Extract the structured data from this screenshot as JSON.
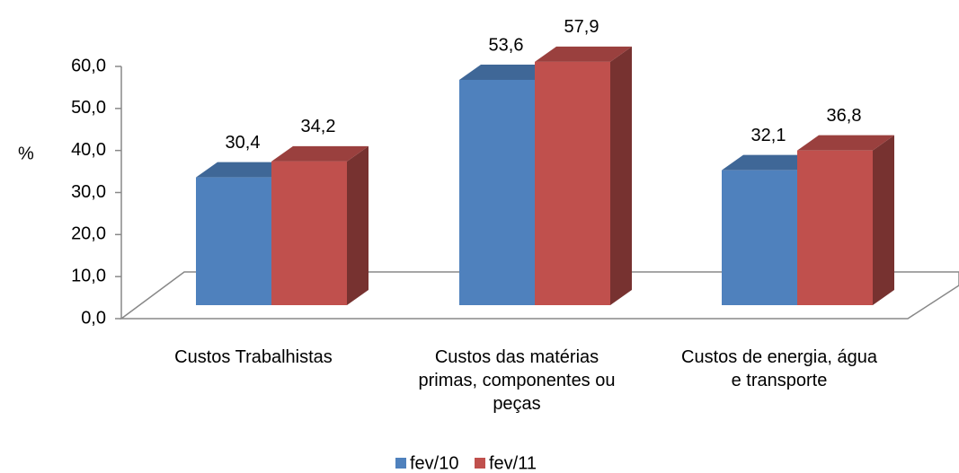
{
  "chart_data": {
    "type": "bar3d",
    "y_label": "%",
    "categories": [
      "Custos Trabalhistas",
      "Custos das matérias primas, componentes ou peças",
      "Custos de energia, água e transporte"
    ],
    "series": [
      {
        "name": "fev/10",
        "color": "#4f81bd",
        "values": [
          30.4,
          53.6,
          32.1
        ],
        "value_labels": [
          "30,4",
          "53,6",
          "32,1"
        ]
      },
      {
        "name": "fev/11",
        "color": "#c0504d",
        "values": [
          34.2,
          57.9,
          36.8
        ],
        "value_labels": [
          "34,2",
          "57,9",
          "36,8"
        ]
      }
    ],
    "ylim": [
      0,
      60
    ],
    "yticks": [
      {
        "value": 0,
        "label": "0,0"
      },
      {
        "value": 10,
        "label": "10,0"
      },
      {
        "value": 20,
        "label": "20,0"
      },
      {
        "value": 30,
        "label": "30,0"
      },
      {
        "value": 40,
        "label": "40,0"
      },
      {
        "value": 50,
        "label": "50,0"
      },
      {
        "value": 60,
        "label": "60,0"
      }
    ],
    "legend": "bottom"
  }
}
